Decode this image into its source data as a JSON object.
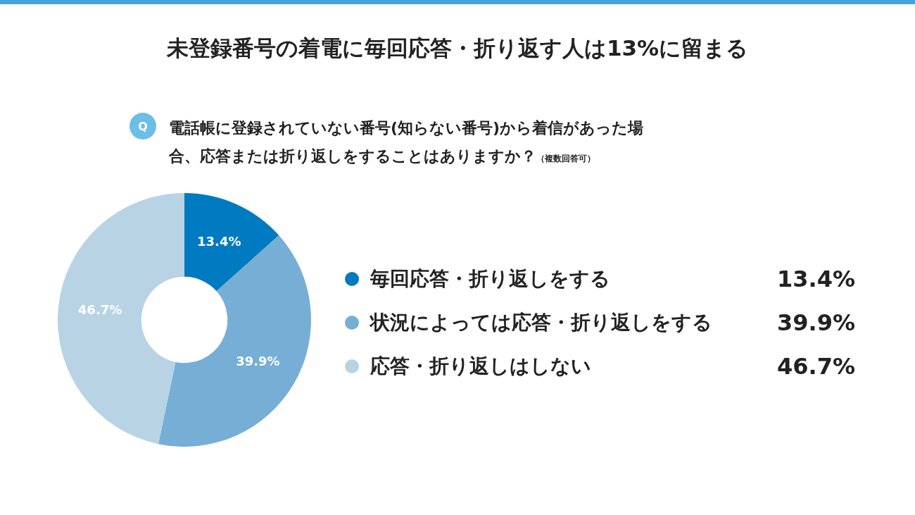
{
  "chart_data": {
    "type": "donut",
    "title": "未登録番号の着電に毎回応答・折り返す人は13%に留まる",
    "subtitle": "電話帳に登録されていない番号(知らない番号)から着信があった場合、応答または折り返しをすることはありますか？",
    "annotations": [
      "Q",
      "（複数回答可）"
    ],
    "categories": [
      "毎回応答・折り返しをする",
      "状況によっては応答・折り返しをする",
      "応答・折り返しはしない"
    ],
    "values": [
      13.4,
      39.9,
      46.7
    ],
    "value_labels": [
      "13.4%",
      "39.9%",
      "46.7%"
    ],
    "colors": [
      "#007ac0",
      "#76aed6",
      "#b8d3e4"
    ],
    "legend": "right"
  }
}
